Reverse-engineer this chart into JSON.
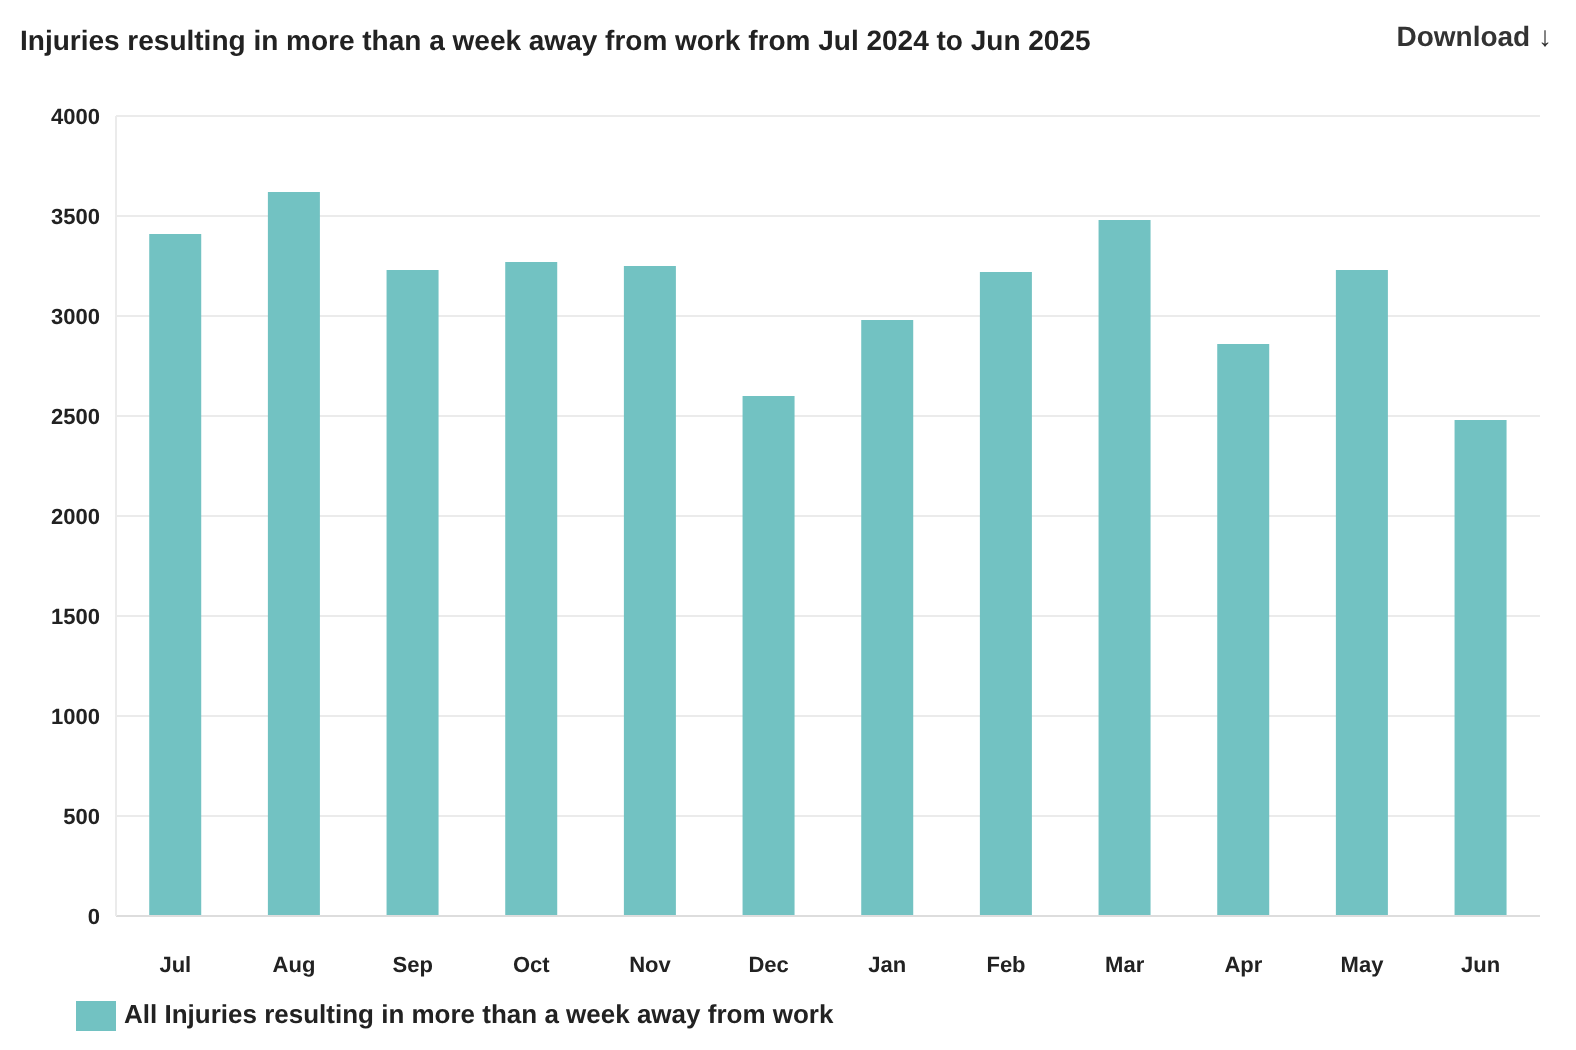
{
  "chart_data": {
    "type": "bar",
    "title": "Injuries resulting in more than a week away from work from Jul 2024 to Jun 2025",
    "annotations": [
      "Download ↓"
    ],
    "categories": [
      "Jul",
      "Aug",
      "Sep",
      "Oct",
      "Nov",
      "Dec",
      "Jan",
      "Feb",
      "Mar",
      "Apr",
      "May",
      "Jun"
    ],
    "series": [
      {
        "name": "All Injuries resulting in more than a week away from work",
        "color": "#72c2c2",
        "values": [
          3410,
          3620,
          3230,
          3270,
          3250,
          2600,
          2980,
          3220,
          3480,
          2860,
          3230,
          2480
        ]
      }
    ],
    "ylim": [
      0,
      4000
    ],
    "yticks": [
      0,
      500,
      1000,
      1500,
      2000,
      2500,
      3000,
      3500,
      4000
    ],
    "grid": "y",
    "legend": "bottom left"
  }
}
